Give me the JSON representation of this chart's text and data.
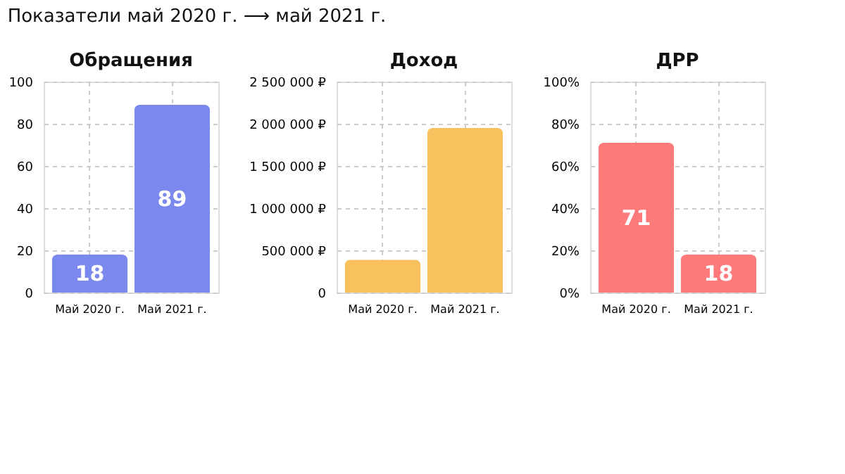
{
  "chart_data": [
    {
      "type": "bar",
      "title": "Обращения",
      "annotations": [
        "Показатели май 2020 г. ⟶ май 2021 г."
      ],
      "categories": [
        "Май 2020 г.",
        "Май 2021 г."
      ],
      "values": [
        18,
        89
      ],
      "color": "#7b88ee",
      "ylim": [
        0,
        100
      ],
      "yticks": [
        0,
        20,
        40,
        60,
        80,
        100
      ],
      "grid": true,
      "data_labels": true
    },
    {
      "type": "bar",
      "title": "Доход",
      "categories": [
        "Май 2020 г.",
        "Май 2021 г."
      ],
      "values": [
        390000,
        1950000
      ],
      "color": "#f8c15e",
      "ylim": [
        0,
        2500000
      ],
      "yticks": [
        0,
        {
          "value": 500000,
          "label": "500 000 ₽"
        },
        {
          "value": 1000000,
          "label": "1 000 000 ₽"
        },
        {
          "value": 1500000,
          "label": "1 500 000 ₽"
        },
        {
          "value": 2000000,
          "label": "2 000 000 ₽"
        },
        {
          "value": 2500000,
          "label": "2 500 000 ₽"
        }
      ],
      "grid": true
    },
    {
      "type": "bar",
      "title": "ДРР",
      "categories": [
        "Май 2020 г.",
        "Май 2021 г."
      ],
      "values": [
        71,
        18
      ],
      "color": "#ff7b7b",
      "ylim": [
        0,
        100
      ],
      "yticks": [
        {
          "value": 0,
          "label": "0%"
        },
        {
          "value": 20,
          "label": "20%"
        },
        {
          "value": 40,
          "label": "40%"
        },
        {
          "value": 60,
          "label": "60%"
        },
        {
          "value": 80,
          "label": "80%"
        },
        {
          "value": 100,
          "label": "100%"
        }
      ],
      "grid": true,
      "data_labels": true
    }
  ]
}
